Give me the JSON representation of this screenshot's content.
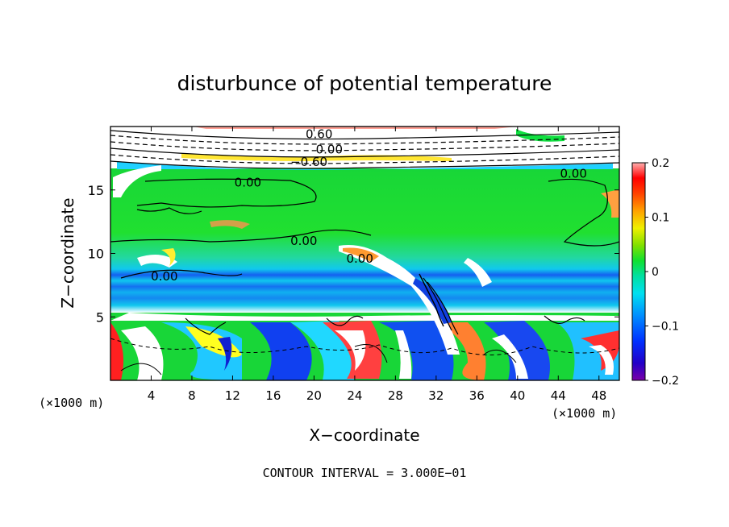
{
  "chart_data": {
    "type": "heatmap",
    "title": "disturbunce of potential temperature",
    "xlabel": "X−coordinate",
    "ylabel": "Z−coordinate",
    "x_unit_left": "(×1000 m)",
    "x_unit_right": "(×1000 m)",
    "xlim": [
      0,
      50
    ],
    "ylim": [
      0,
      20
    ],
    "xticks": [
      4,
      8,
      12,
      16,
      20,
      24,
      28,
      32,
      36,
      40,
      44,
      48
    ],
    "yticks": [
      5,
      10,
      15
    ],
    "colorbar": {
      "range": [
        -0.2,
        0.2
      ],
      "ticks": [
        {
          "v": 0.2,
          "label": "0.2"
        },
        {
          "v": 0.1,
          "label": "0.1"
        },
        {
          "v": 0,
          "label": "0"
        },
        {
          "v": -0.1,
          "label": "−0.1"
        },
        {
          "v": -0.2,
          "label": "−0.2"
        }
      ]
    },
    "contour_labels": [
      {
        "text": "0.60",
        "x": 20.5,
        "z": 19.4
      },
      {
        "text": "0.00",
        "x": 21.5,
        "z": 18.2
      },
      {
        "text": "−0.60",
        "x": 19.5,
        "z": 17.2
      },
      {
        "text": "0.00",
        "x": 13.5,
        "z": 15.6
      },
      {
        "text": "0.00",
        "x": 45.5,
        "z": 16.3
      },
      {
        "text": "0.00",
        "x": 19,
        "z": 11.0
      },
      {
        "text": "0.00",
        "x": 5.3,
        "z": 8.2
      },
      {
        "text": "0.00",
        "x": 24.5,
        "z": 9.6
      }
    ],
    "footer": "CONTOUR INTERVAL = 3.000E−01"
  }
}
